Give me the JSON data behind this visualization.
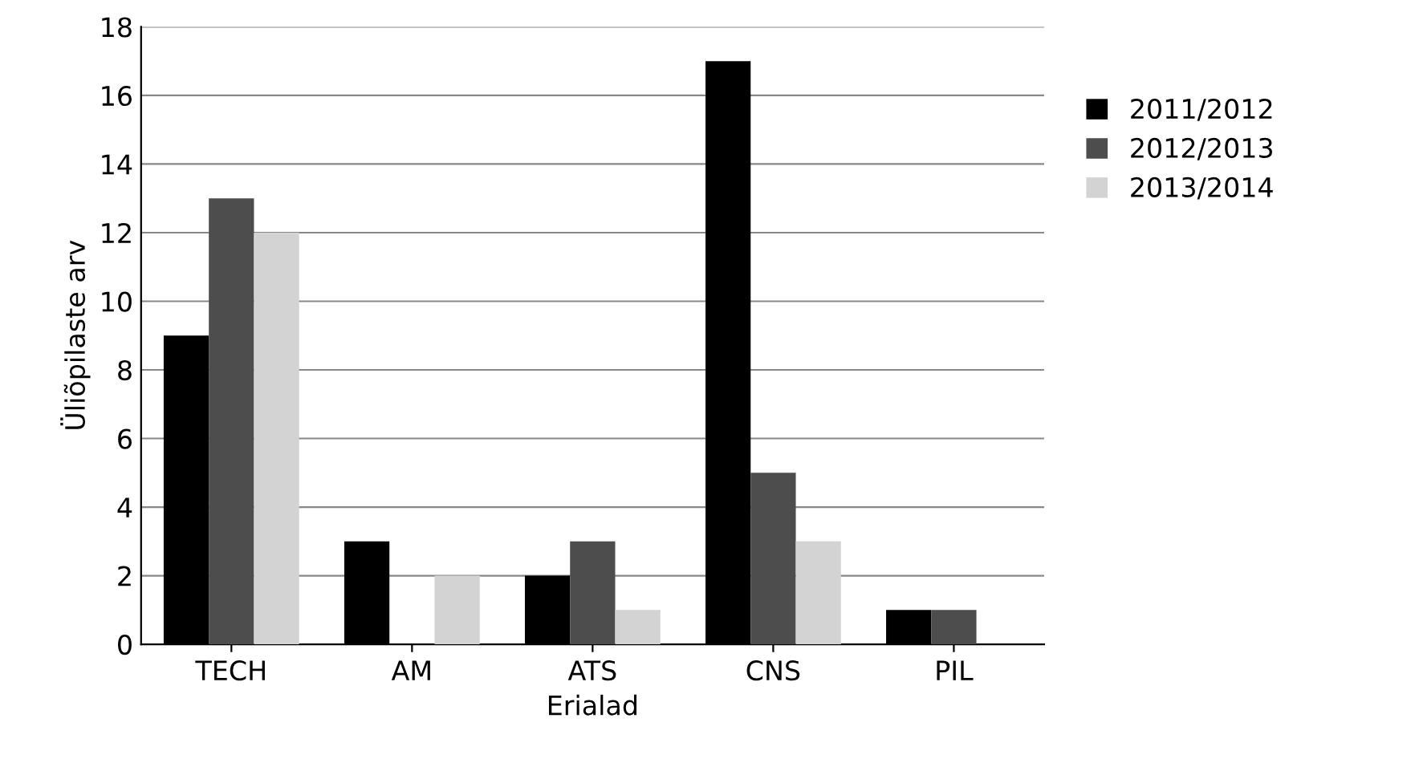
{
  "chart_data": {
    "type": "bar",
    "xlabel": "Erialad",
    "ylabel": "Üliõpilaste arv",
    "categories": [
      "TECH",
      "AM",
      "ATS",
      "CNS",
      "PIL"
    ],
    "series": [
      {
        "name": "2011/2012",
        "color": "#000000",
        "values": [
          9,
          3,
          2,
          17,
          1
        ]
      },
      {
        "name": "2012/2013",
        "color": "#4d4d4d",
        "values": [
          13,
          0,
          3,
          5,
          1
        ]
      },
      {
        "name": "2013/2014",
        "color": "#d3d3d3",
        "values": [
          12,
          2,
          1,
          3,
          0
        ]
      }
    ],
    "ylim": [
      0,
      18
    ],
    "yticks": [
      0,
      2,
      4,
      6,
      8,
      10,
      12,
      14,
      16,
      18
    ],
    "grid": "y",
    "legend": "right"
  }
}
